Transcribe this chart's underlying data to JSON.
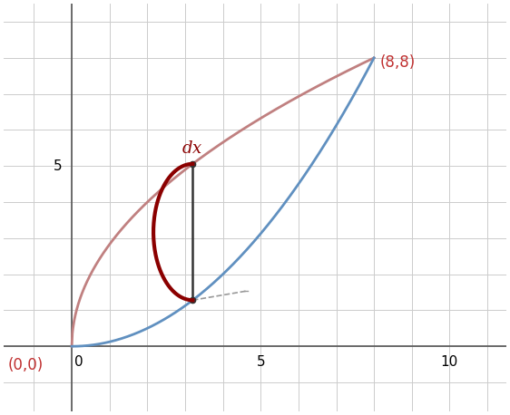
{
  "xlim": [
    -1.8,
    11.5
  ],
  "ylim": [
    -1.8,
    9.5
  ],
  "xticks": [
    5,
    10
  ],
  "yticks": [
    5
  ],
  "upper_curve_color": "#c08080",
  "lower_curve_color": "#6090c0",
  "bracket_color": "#8b0000",
  "line_color": "#333333",
  "dashed_color": "#999999",
  "point_color": "#333333",
  "label_88_color": "#c03030",
  "label_00_color": "#c03030",
  "dx_color": "#8b0000",
  "sample_x": 3.2,
  "background_color": "#ffffff",
  "grid_color": "#cccccc",
  "axis_color": "#555555"
}
